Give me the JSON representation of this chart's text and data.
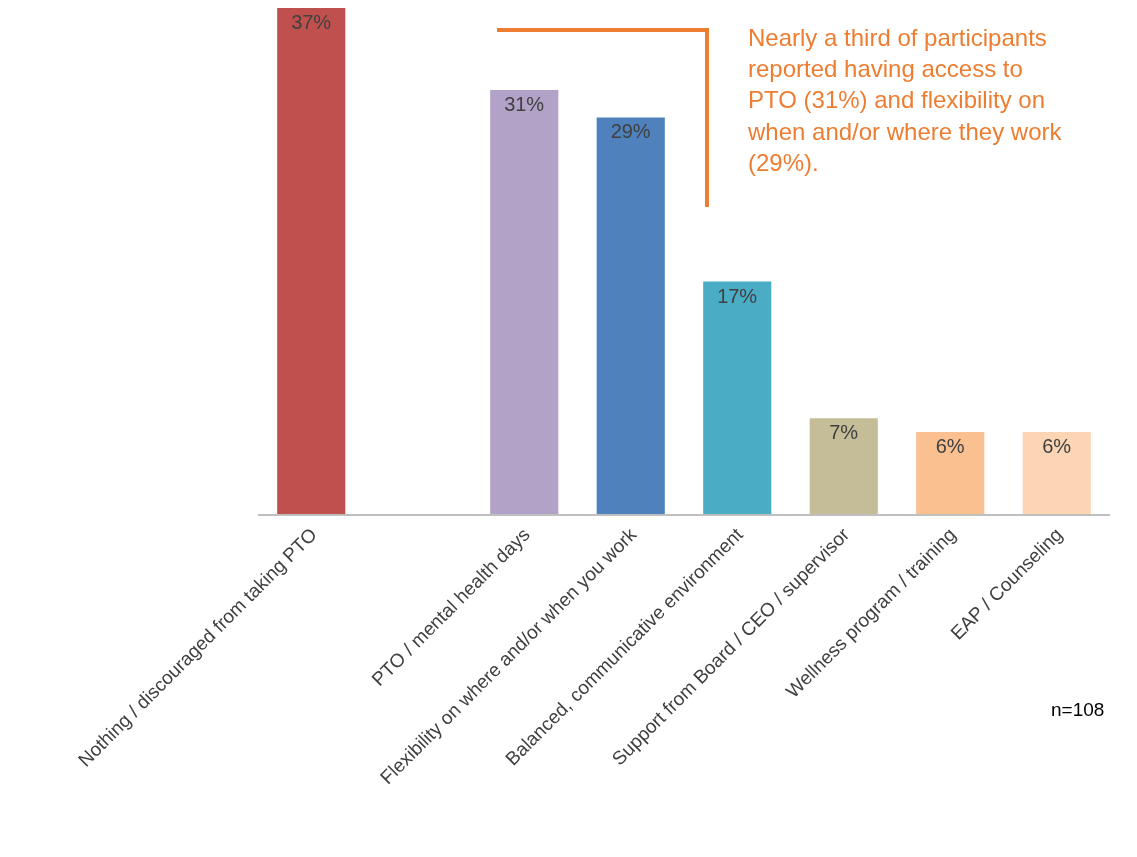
{
  "chart_data": {
    "type": "bar",
    "categories": [
      "Nothing / discouraged from taking PTO",
      null,
      "PTO / mental health days",
      "Flexibility on where and/or when you work",
      "Balanced, communicative environment",
      "Support from Board / CEO / supervisor",
      "Wellness program / training",
      "EAP / Counseling"
    ],
    "values": [
      37,
      null,
      31,
      29,
      17,
      7,
      6,
      6
    ],
    "value_labels": [
      "37%",
      null,
      "31%",
      "29%",
      "17%",
      "7%",
      "6%",
      "6%"
    ],
    "colors": [
      "#c0504d",
      "#ffffff",
      "#b3a2c7",
      "#4f81bd",
      "#4bacc6",
      "#c4bd97",
      "#fac090",
      "#fcd5b5"
    ],
    "annotations": [
      "Nearly a third of participants\nreported having access to\nPTO (31%) and flexibility on\nwhen and/or where they work\n(29%).",
      "n=108"
    ]
  }
}
